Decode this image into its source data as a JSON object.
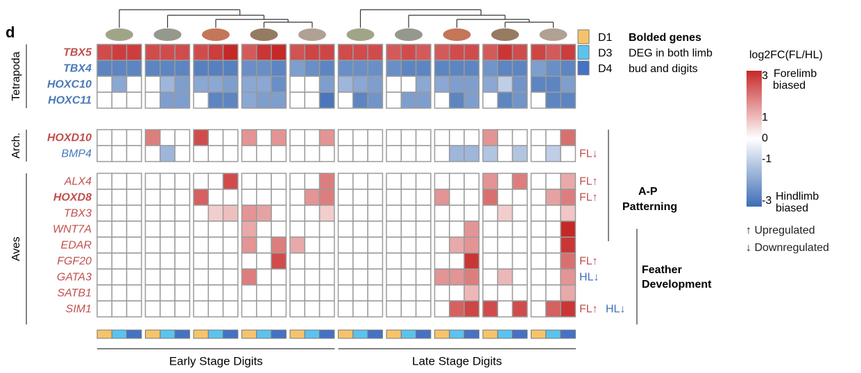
{
  "chart_data": {
    "type": "heatmap",
    "panel_label": "d",
    "stages": [
      "Early Stage Digits",
      "Late Stage Digits"
    ],
    "groups": [
      {
        "name": "Tetrapoda",
        "rows": [
          0,
          3
        ]
      },
      {
        "name": "Arch.",
        "rows": [
          4,
          5
        ]
      },
      {
        "name": "Aves",
        "rows": [
          6,
          14
        ]
      }
    ],
    "rows": [
      {
        "name": "TBX5",
        "color": "#c0504d",
        "bold": true
      },
      {
        "name": "TBX4",
        "color": "#4a7ab8",
        "bold": true
      },
      {
        "name": "HOXC10",
        "color": "#4a7ab8",
        "bold": true
      },
      {
        "name": "HOXC11",
        "color": "#4a7ab8",
        "bold": true
      },
      {
        "name": "HOXD10",
        "color": "#c0504d",
        "bold": true
      },
      {
        "name": "BMP4",
        "color": "#4a7ab8",
        "bold": false,
        "notes": [
          {
            "text": "FL↓",
            "color": "#c0504d"
          }
        ]
      },
      {
        "name": "ALX4",
        "color": "#c0504d",
        "bold": false,
        "notes": [
          {
            "text": "FL↑",
            "color": "#c0504d"
          }
        ]
      },
      {
        "name": "HOXD8",
        "color": "#c0504d",
        "bold": true,
        "notes": [
          {
            "text": "FL↑",
            "color": "#c0504d"
          }
        ]
      },
      {
        "name": "TBX3",
        "color": "#c0504d",
        "bold": false
      },
      {
        "name": "WNT7A",
        "color": "#c0504d",
        "bold": false
      },
      {
        "name": "EDAR",
        "color": "#c0504d",
        "bold": false
      },
      {
        "name": "FGF20",
        "color": "#c0504d",
        "bold": false,
        "notes": [
          {
            "text": "FL↑",
            "color": "#c0504d"
          }
        ]
      },
      {
        "name": "GATA3",
        "color": "#c0504d",
        "bold": false,
        "notes": [
          {
            "text": "HL↓",
            "color": "#3d6db5"
          }
        ]
      },
      {
        "name": "SATB1",
        "color": "#c0504d",
        "bold": false
      },
      {
        "name": "SIM1",
        "color": "#c0504d",
        "bold": false,
        "notes": [
          {
            "text": "FL↑",
            "color": "#c0504d"
          },
          {
            "text": "HL↓",
            "color": "#3d6db5"
          }
        ]
      }
    ],
    "values": [
      [
        2.5,
        2.7,
        2.7,
        2.5,
        2.5,
        2.5,
        2.5,
        2.7,
        3,
        2.3,
        2.8,
        3,
        2.4,
        2.6,
        2.6,
        2.5,
        2.5,
        2.5,
        2.3,
        2.5,
        2.3,
        2.3,
        2.5,
        2.5,
        2.3,
        2.8,
        2.5,
        2.6,
        2.3,
        2.7
      ],
      [
        -2.5,
        -2.5,
        -2.5,
        -2.5,
        -2.5,
        -2.5,
        -2.6,
        -2.6,
        -2.6,
        -2.3,
        -2.3,
        -2.5,
        -2,
        -2.3,
        -2.5,
        -2.3,
        -2.3,
        -2.3,
        -2.3,
        -2.5,
        -2.5,
        -2.5,
        -2.5,
        -2.5,
        -2.2,
        -2.5,
        -2.5,
        -2,
        -2.3,
        -2.5
      ],
      [
        0,
        -1.8,
        0,
        0,
        -1.5,
        -2,
        -1.8,
        -1.8,
        -2,
        -1.8,
        -1.8,
        -2.3,
        0,
        0,
        -2,
        -1.5,
        -1.8,
        -2,
        0,
        0,
        -1.8,
        -1.8,
        -2,
        -2,
        -1.8,
        -1,
        -2.2,
        -2.5,
        -2.5,
        -2
      ],
      [
        0,
        0,
        0,
        0,
        -2,
        -2,
        0,
        -2.5,
        -2.5,
        -1.8,
        -2,
        -2,
        0,
        0,
        -2.8,
        0,
        -2.5,
        -2.2,
        0,
        -2,
        -2,
        0,
        -2.5,
        -2,
        0,
        -2.5,
        -2.2,
        0,
        -2.5,
        -2.5
      ],
      [
        0,
        0,
        0,
        1.8,
        0,
        0,
        2.5,
        0,
        0,
        1.5,
        0,
        1.5,
        0,
        0,
        1.5,
        0,
        0,
        0,
        0,
        0,
        0,
        0,
        0,
        0,
        1.5,
        0,
        0,
        0,
        0,
        2
      ],
      [
        0,
        0,
        0,
        0,
        -1.5,
        0,
        0,
        0,
        0,
        0,
        0,
        0,
        0,
        0,
        0,
        0,
        0,
        0,
        0,
        0,
        0,
        0,
        -1.5,
        -1.5,
        -1.2,
        0,
        -1.2,
        0,
        -1,
        0
      ],
      [
        0,
        0,
        0,
        0,
        0,
        0,
        0,
        0,
        2.5,
        0,
        0,
        0,
        0,
        0,
        1.8,
        0,
        0,
        0,
        0,
        0,
        0,
        0,
        0,
        0,
        1.5,
        0,
        1.8,
        0,
        0,
        1.2
      ],
      [
        0,
        0,
        0,
        0,
        0,
        0,
        2.2,
        0,
        0,
        0,
        0,
        0,
        0,
        1.5,
        1.8,
        0,
        0,
        0,
        0,
        0,
        0,
        1.5,
        0,
        0,
        2,
        0,
        0,
        0,
        1.3,
        1.8
      ],
      [
        0,
        0,
        0,
        0,
        0,
        0,
        0,
        0.7,
        0.9,
        1.5,
        1.3,
        0,
        0,
        0,
        0.7,
        0,
        0,
        0,
        0,
        0,
        0,
        0,
        0,
        0,
        0,
        0.7,
        0,
        0,
        0,
        0.8
      ],
      [
        0,
        0,
        0,
        0,
        0,
        0,
        0,
        0,
        0,
        1.2,
        0,
        0,
        0,
        0,
        0,
        0,
        0,
        0,
        0,
        0,
        0,
        0,
        0,
        1.5,
        0,
        0,
        0,
        0,
        0,
        3
      ],
      [
        0,
        0,
        0,
        0,
        0,
        0,
        0,
        0,
        0,
        1.5,
        0,
        1.8,
        1.2,
        0,
        0,
        0,
        0,
        0,
        0,
        0,
        0,
        0,
        1.2,
        1.5,
        0,
        0,
        0,
        0,
        0,
        2.8
      ],
      [
        0,
        0,
        0,
        0,
        0,
        0,
        0,
        0,
        0,
        0,
        0,
        2.5,
        0,
        0,
        0,
        0,
        0,
        0,
        0,
        0,
        0,
        0,
        0,
        2.8,
        0,
        0,
        0,
        0,
        0,
        2
      ],
      [
        0,
        0,
        0,
        0,
        0,
        0,
        0,
        0,
        0,
        1.8,
        0,
        0,
        0,
        0,
        0,
        0,
        0,
        0,
        0,
        0,
        0,
        1.5,
        1.5,
        1.8,
        0,
        1,
        0,
        0,
        0,
        1.5
      ],
      [
        0,
        0,
        0,
        0,
        0,
        0,
        0,
        0,
        0,
        0,
        0,
        0,
        0,
        0,
        0,
        0,
        0,
        0,
        0,
        0,
        0,
        0,
        0,
        1,
        0,
        0,
        0,
        0,
        0,
        1.2
      ],
      [
        0,
        0,
        0,
        0,
        0,
        0,
        0,
        0,
        0,
        0,
        0,
        0,
        0,
        0,
        0,
        0,
        0,
        0,
        0,
        0,
        0,
        0,
        2.2,
        2.6,
        2.5,
        0,
        2.5,
        0,
        2.2,
        2.8
      ]
    ],
    "digits": [
      {
        "name": "D1",
        "color": "#f7c36a"
      },
      {
        "name": "D3",
        "color": "#5bc3ee"
      },
      {
        "name": "D4",
        "color": "#4472c4"
      }
    ],
    "digit_legend_text": [
      "Bolded genes",
      "DEG in both limb",
      "bud and digits"
    ],
    "sections": [
      {
        "lines": [
          "A-P",
          "Patterning"
        ]
      },
      {
        "lines": [
          "Feather",
          "Development"
        ]
      }
    ],
    "colorbar": {
      "title": "log2FC(FL/HL)",
      "lim": [
        -3,
        3
      ],
      "ticks": [
        3,
        1,
        0,
        -1,
        -3
      ],
      "low_color": "#3d6db5",
      "high_color": "#c62828",
      "top_label": [
        "Forelimb",
        "biased"
      ],
      "bottom_label": [
        "Hindlimb",
        "biased"
      ]
    },
    "arrow_legend": [
      "↑ Upregulated",
      "↓ Downregulated"
    ]
  }
}
